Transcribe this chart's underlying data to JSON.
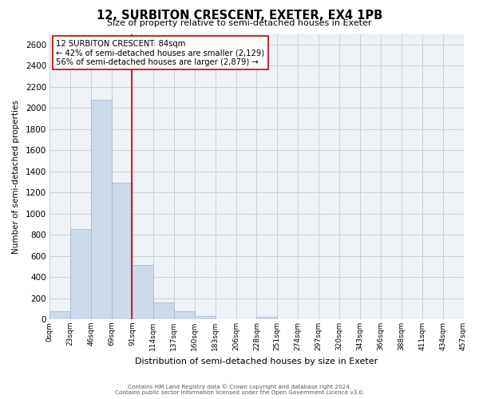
{
  "title": "12, SURBITON CRESCENT, EXETER, EX4 1PB",
  "subtitle": "Size of property relative to semi-detached houses in Exeter",
  "xlabel": "Distribution of semi-detached houses by size in Exeter",
  "ylabel": "Number of semi-detached properties",
  "footnote1": "Contains HM Land Registry data © Crown copyright and database right 2024.",
  "footnote2": "Contains public sector information licensed under the Open Government Licence v3.0.",
  "bar_edges": [
    0,
    23,
    46,
    69,
    92,
    115,
    138,
    161,
    184,
    207,
    230,
    253,
    276,
    299,
    322,
    345,
    368,
    391,
    414,
    437,
    460
  ],
  "bar_heights": [
    75,
    855,
    2075,
    1290,
    510,
    160,
    75,
    30,
    0,
    0,
    25,
    0,
    0,
    0,
    0,
    0,
    0,
    0,
    0,
    0
  ],
  "tick_labels": [
    "0sqm",
    "23sqm",
    "46sqm",
    "69sqm",
    "91sqm",
    "114sqm",
    "137sqm",
    "160sqm",
    "183sqm",
    "206sqm",
    "228sqm",
    "251sqm",
    "274sqm",
    "297sqm",
    "320sqm",
    "343sqm",
    "366sqm",
    "388sqm",
    "411sqm",
    "434sqm",
    "457sqm"
  ],
  "bar_color": "#ccdaea",
  "bar_edgecolor": "#aabccc",
  "property_line_x": 91,
  "property_line_color": "#cc0000",
  "annotation_title": "12 SURBITON CRESCENT: 84sqm",
  "annotation_line1": "← 42% of semi-detached houses are smaller (2,129)",
  "annotation_line2": "56% of semi-detached houses are larger (2,879) →",
  "annotation_box_facecolor": "#ffffff",
  "annotation_box_edgecolor": "#cc0000",
  "ylim": [
    0,
    2700
  ],
  "yticks": [
    0,
    200,
    400,
    600,
    800,
    1000,
    1200,
    1400,
    1600,
    1800,
    2000,
    2200,
    2400,
    2600
  ],
  "background_color": "#ffffff",
  "grid_color": "#c8d0d8",
  "plot_bg_color": "#eef2f6"
}
